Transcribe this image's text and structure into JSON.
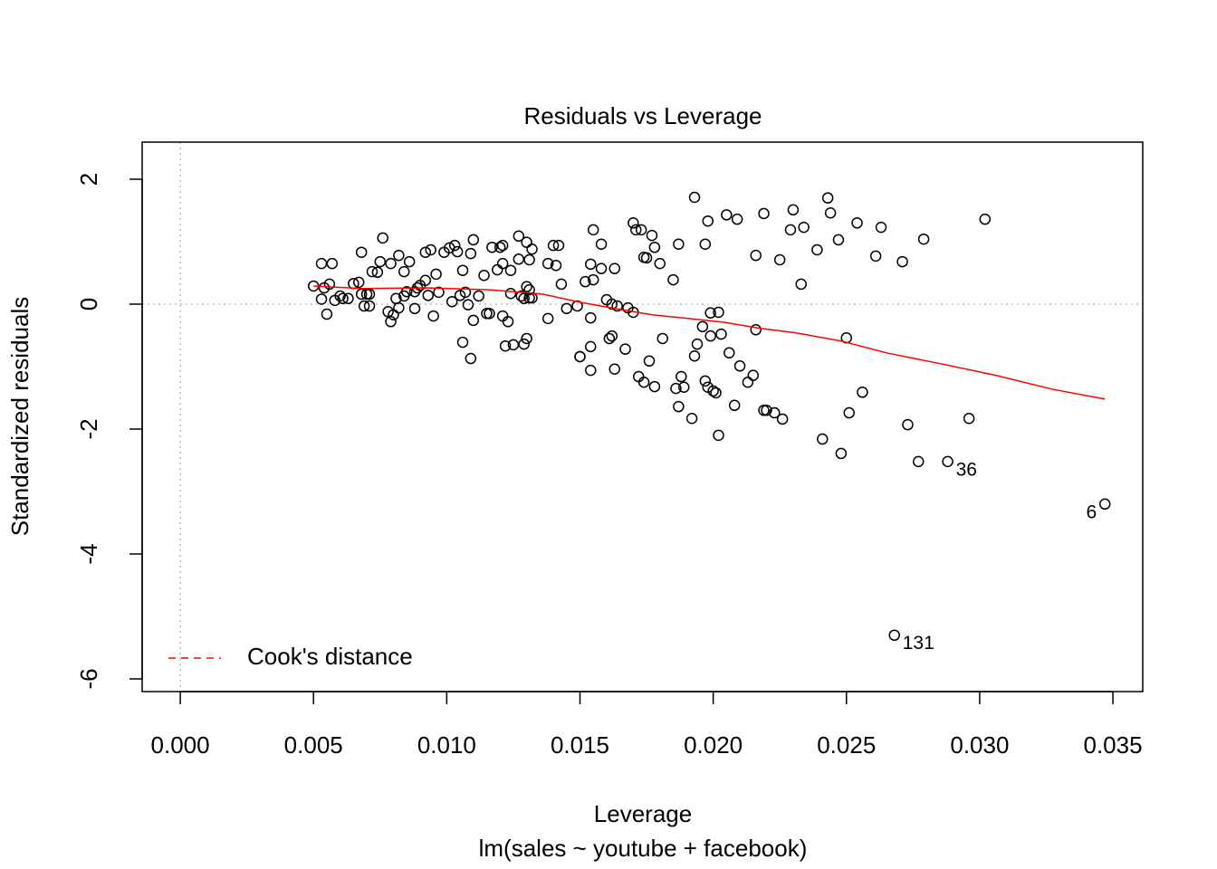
{
  "chart_data": {
    "type": "scatter",
    "title": "Residuals vs Leverage",
    "x_label": "Leverage",
    "subtitle": "lm(sales ~ youtube + facebook)",
    "y_label": "Standardized residuals",
    "xlim": [
      -0.00143,
      0.03612
    ],
    "ylim": [
      -6.203,
      2.594
    ],
    "xticks": [
      {
        "value": 0,
        "label": "0.000"
      },
      {
        "value": 0.005,
        "label": "0.005"
      },
      {
        "value": 0.01,
        "label": "0.010"
      },
      {
        "value": 0.015,
        "label": "0.015"
      },
      {
        "value": 0.02,
        "label": "0.020"
      },
      {
        "value": 0.025,
        "label": "0.025"
      },
      {
        "value": 0.03,
        "label": "0.030"
      },
      {
        "value": 0.035,
        "label": "0.035"
      }
    ],
    "yticks": [
      -6,
      -4,
      -2,
      0,
      2
    ],
    "reference_lines": {
      "x": 0,
      "y": 0,
      "color": "#bebebe"
    },
    "series": [
      {
        "color": "#000000",
        "x": [
          0.005,
          0.0053,
          0.0057,
          0.0053,
          0.0054,
          0.0055,
          0.0056,
          0.0058,
          0.006,
          0.0061,
          0.0063,
          0.0065,
          0.0067,
          0.0068,
          0.0068,
          0.0069,
          0.007,
          0.0071,
          0.0071,
          0.0072,
          0.0074,
          0.0075,
          0.0076,
          0.0078,
          0.0079,
          0.0079,
          0.008,
          0.0081,
          0.0082,
          0.0082,
          0.0084,
          0.0084,
          0.0085,
          0.0086,
          0.0088,
          0.0088,
          0.0089,
          0.009,
          0.0092,
          0.0092,
          0.0093,
          0.0094,
          0.0095,
          0.0096,
          0.0097,
          0.0099,
          0.0101,
          0.0102,
          0.0103,
          0.0104,
          0.0105,
          0.0106,
          0.0106,
          0.0107,
          0.0108,
          0.0109,
          0.0109,
          0.011,
          0.011,
          0.0112,
          0.0114,
          0.0115,
          0.0116,
          0.0117,
          0.0119,
          0.012,
          0.0121,
          0.0121,
          0.0121,
          0.0122,
          0.0123,
          0.0124,
          0.0124,
          0.0125,
          0.0127,
          0.0127,
          0.0128,
          0.0129,
          0.0129,
          0.013,
          0.013,
          0.013,
          0.0131,
          0.0131,
          0.0131,
          0.0132,
          0.0132,
          0.0138,
          0.0138,
          0.014,
          0.0141,
          0.0142,
          0.0143,
          0.0145,
          0.0149,
          0.015,
          0.015,
          0.0152,
          0.0154,
          0.0154,
          0.0154,
          0.0154,
          0.0155,
          0.0155,
          0.0158,
          0.0158,
          0.016,
          0.0161,
          0.0162,
          0.0162,
          0.0163,
          0.0163,
          0.0164,
          0.0167,
          0.0168,
          0.017,
          0.017,
          0.0171,
          0.0172,
          0.0173,
          0.0174,
          0.0174,
          0.0175,
          0.0176,
          0.0177,
          0.0178,
          0.0178,
          0.018,
          0.0181,
          0.0185,
          0.0186,
          0.0187,
          0.0187,
          0.0188,
          0.0189,
          0.0192,
          0.0193,
          0.0193,
          0.0194,
          0.0196,
          0.0197,
          0.0197,
          0.0198,
          0.0198,
          0.0199,
          0.0199,
          0.02,
          0.0201,
          0.0202,
          0.0202,
          0.0203,
          0.0205,
          0.0206,
          0.0208,
          0.0209,
          0.021,
          0.0213,
          0.0215,
          0.0216,
          0.0216,
          0.0219,
          0.0219,
          0.022,
          0.0223,
          0.0225,
          0.0226,
          0.0229,
          0.023,
          0.0233,
          0.0234,
          0.0239,
          0.0241,
          0.0243,
          0.0244,
          0.0247,
          0.0248,
          0.025,
          0.0251,
          0.0254,
          0.0256,
          0.0261,
          0.0263,
          0.0271,
          0.0273,
          0.0277,
          0.0279,
          0.0296,
          0.0302
        ],
        "y": [
          0.29,
          0.65,
          0.65,
          0.08,
          0.26,
          -0.16,
          0.32,
          0.06,
          0.13,
          0.09,
          0.09,
          0.33,
          0.35,
          0.83,
          0.16,
          -0.03,
          0.16,
          -0.03,
          0.16,
          0.52,
          0.51,
          0.68,
          1.06,
          -0.12,
          0.65,
          -0.28,
          -0.17,
          0.09,
          0.78,
          -0.06,
          0.13,
          0.52,
          0.2,
          0.68,
          -0.07,
          0.2,
          0.26,
          0.3,
          0.38,
          0.83,
          0.14,
          0.87,
          -0.19,
          0.48,
          0.19,
          0.83,
          0.9,
          0.04,
          0.94,
          0.84,
          0.14,
          0.54,
          -0.61,
          0.19,
          -0.01,
          -0.87,
          0.81,
          1.03,
          -0.26,
          0.13,
          0.46,
          -0.15,
          -0.15,
          0.91,
          0.55,
          0.91,
          -0.19,
          0.94,
          0.65,
          -0.67,
          -0.28,
          0.17,
          0.54,
          -0.65,
          1.09,
          0.72,
          0.13,
          0.09,
          -0.64,
          0.99,
          -0.55,
          0.28,
          0.1,
          0.23,
          0.71,
          0.88,
          0.1,
          -0.23,
          0.65,
          0.94,
          0.62,
          0.94,
          0.32,
          -0.07,
          -0.03,
          -0.84,
          -0.84,
          0.36,
          -0.68,
          0.64,
          -1.06,
          -0.22,
          0.39,
          1.19,
          0.57,
          0.96,
          0.07,
          -0.55,
          0.0,
          -0.51,
          0.57,
          -1.04,
          -0.03,
          -0.72,
          -0.06,
          1.3,
          -0.13,
          1.19,
          -1.16,
          1.19,
          0.75,
          -1.25,
          0.74,
          -0.91,
          1.1,
          0.91,
          -1.32,
          0.65,
          -0.55,
          0.39,
          -1.35,
          0.96,
          -1.64,
          -1.16,
          -1.33,
          -1.83,
          1.71,
          -0.83,
          -0.64,
          -0.36,
          0.96,
          -1.23,
          1.33,
          -1.33,
          -0.14,
          -0.51,
          -1.39,
          -1.42,
          -0.13,
          -2.1,
          -0.48,
          1.43,
          -0.78,
          -1.62,
          1.36,
          -0.99,
          -1.25,
          -1.14,
          0.78,
          -0.41,
          1.45,
          -1.7,
          -1.7,
          -1.74,
          0.71,
          -1.84,
          1.19,
          1.51,
          0.32,
          1.23,
          0.87,
          -2.16,
          1.7,
          1.46,
          1.03,
          -2.39,
          -0.54,
          -1.74,
          1.3,
          -1.41,
          0.77,
          1.23,
          0.68,
          -1.93,
          -2.52,
          1.04,
          -1.83,
          1.36
        ]
      }
    ],
    "labeled_points": [
      {
        "x": 0.0268,
        "y": -5.3,
        "label": "131"
      },
      {
        "x": 0.0288,
        "y": -2.52,
        "label": "36"
      },
      {
        "x": 0.0347,
        "y": -3.2,
        "label": "6"
      }
    ],
    "smooth": {
      "color": "#ff0000",
      "x": [
        0.005,
        0.0068,
        0.0092,
        0.0116,
        0.0136,
        0.015,
        0.0163,
        0.0177,
        0.0191,
        0.0204,
        0.0218,
        0.0231,
        0.0248,
        0.0265,
        0.0286,
        0.0306,
        0.0327,
        0.0347
      ],
      "y": [
        0.29,
        0.25,
        0.26,
        0.23,
        0.16,
        0.03,
        -0.07,
        -0.17,
        -0.23,
        -0.29,
        -0.39,
        -0.46,
        -0.59,
        -0.78,
        -0.96,
        -1.14,
        -1.36,
        -1.52
      ]
    },
    "legend": {
      "position": "bottomleft",
      "label": "Cook's distance",
      "color": "#ff0000",
      "dashed": true
    }
  }
}
